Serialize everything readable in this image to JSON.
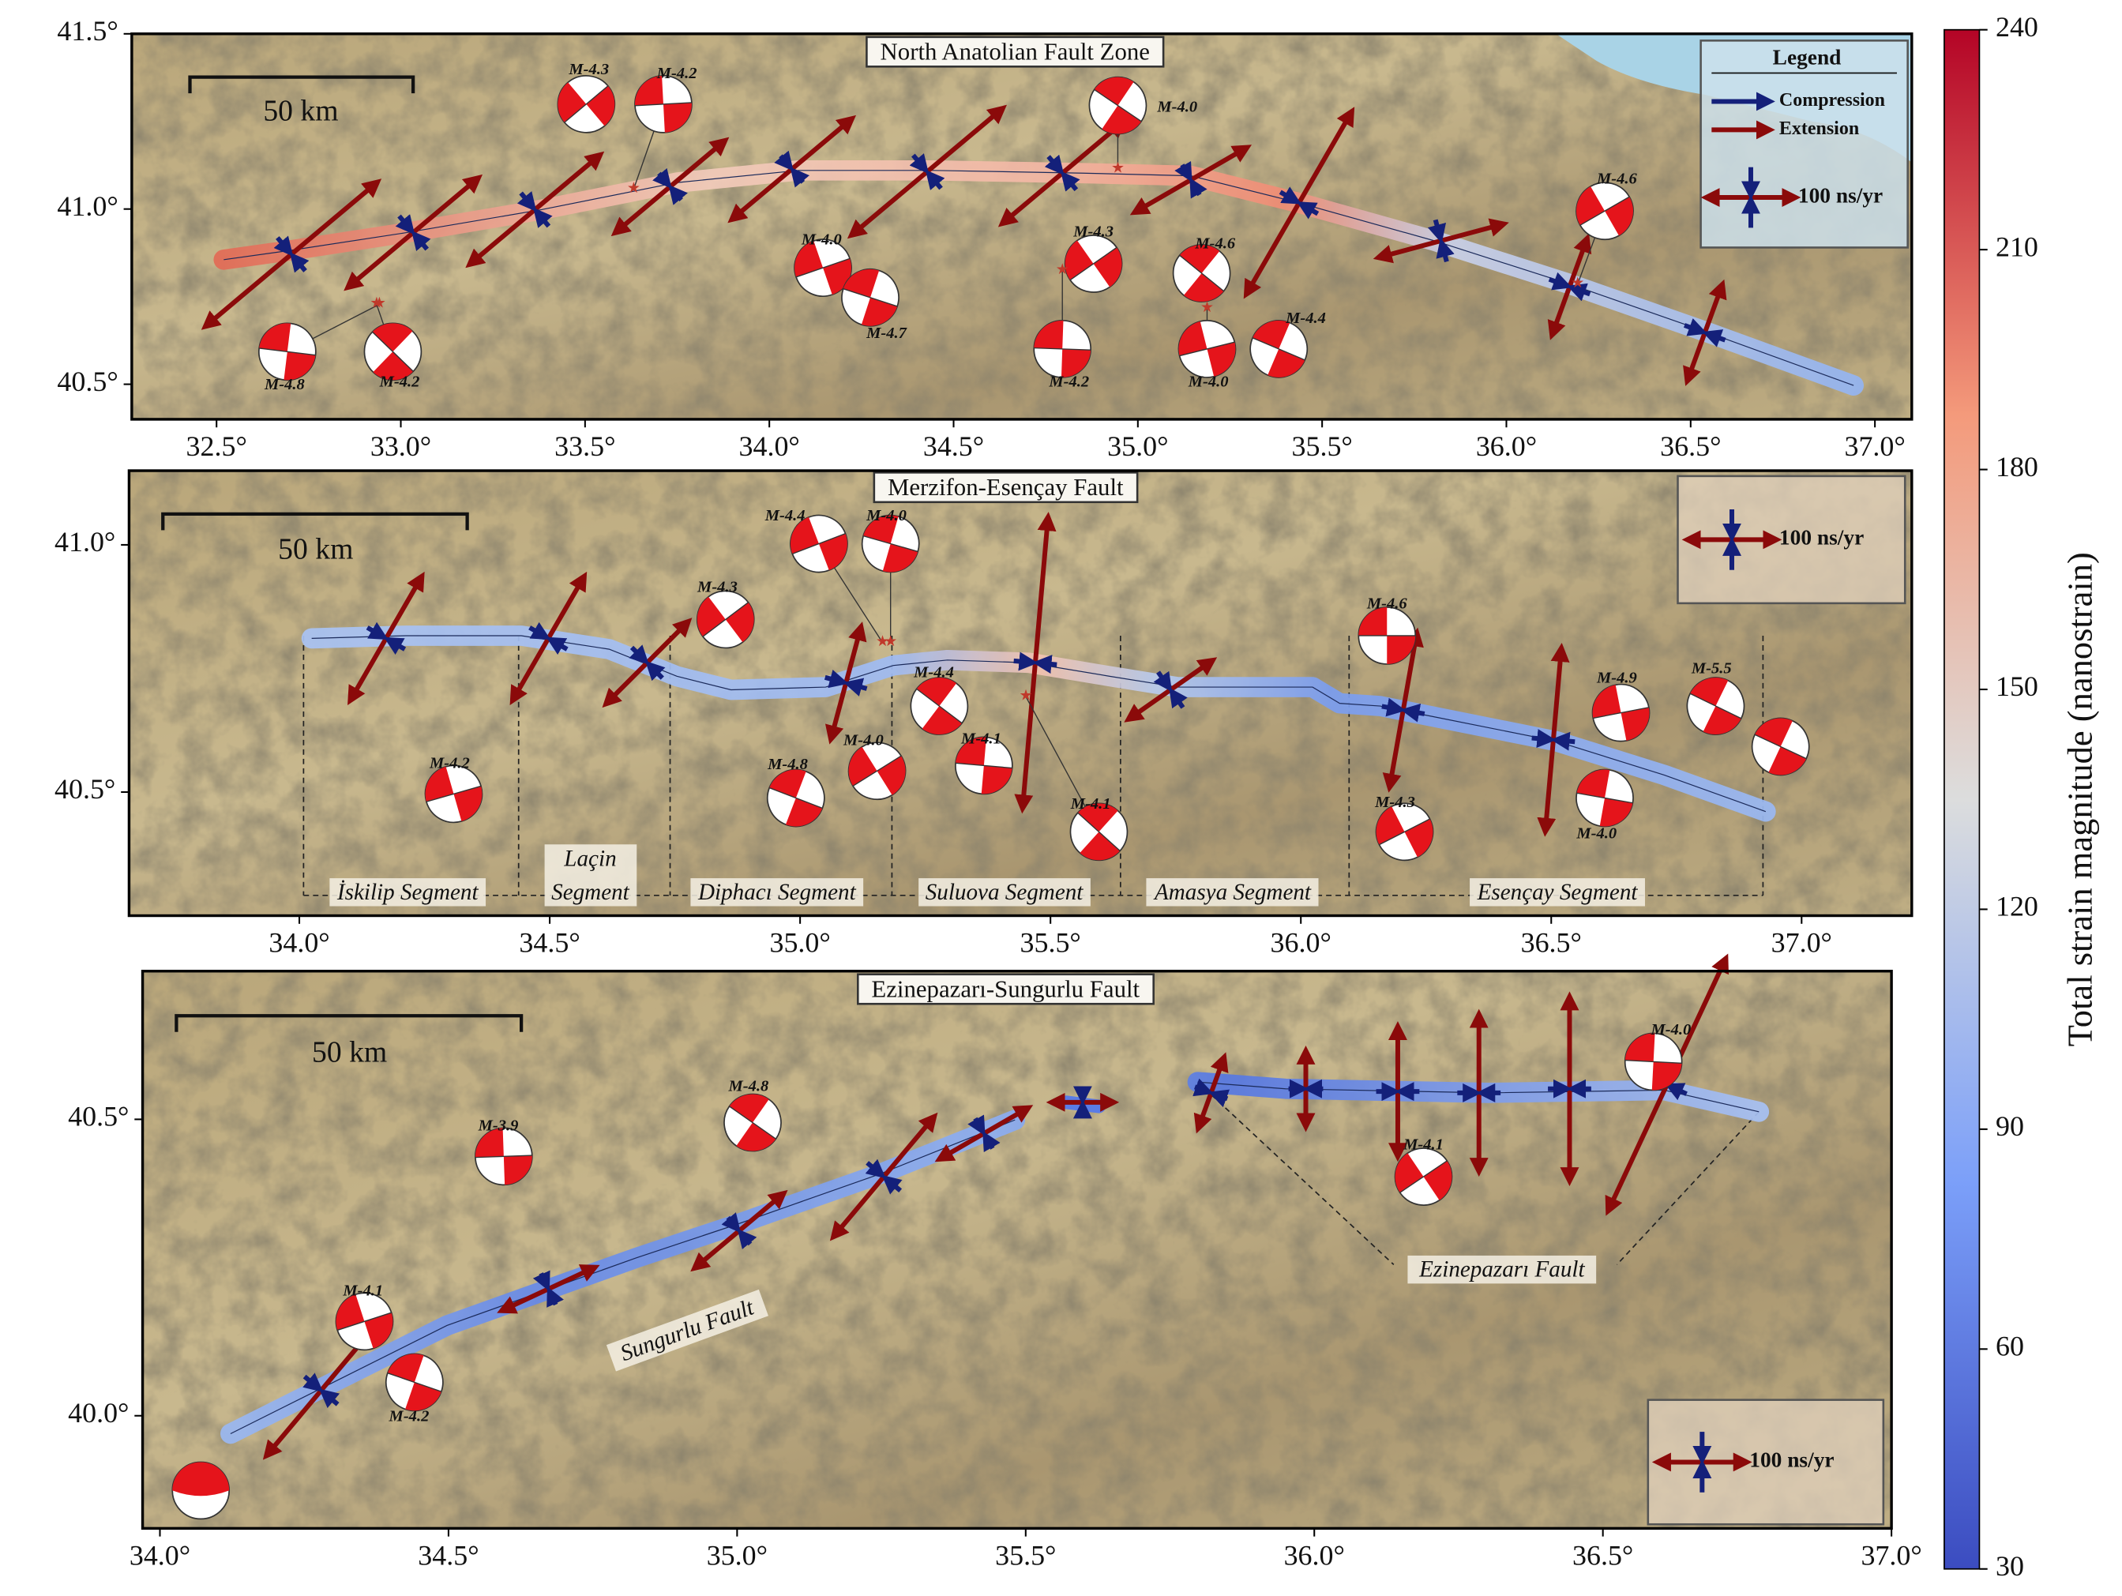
{
  "panels": [
    {
      "title": "North Anatolian Fault Zone",
      "scale_bar": "50 km",
      "xlim": [
        32.27,
        37.1
      ],
      "ylim": [
        40.4,
        41.5
      ],
      "xticks": [
        {
          "value": 32.5,
          "label": "32.5°"
        },
        {
          "value": 33.0,
          "label": "33.0°"
        },
        {
          "value": 33.5,
          "label": "33.5°"
        },
        {
          "value": 34.0,
          "label": "34.0°"
        },
        {
          "value": 34.5,
          "label": "34.5°"
        },
        {
          "value": 35.0,
          "label": "35.0°"
        },
        {
          "value": 35.5,
          "label": "35.5°"
        },
        {
          "value": 36.0,
          "label": "36.0°"
        },
        {
          "value": 36.5,
          "label": "36.5°"
        },
        {
          "value": 37.0,
          "label": "37.0°"
        }
      ],
      "yticks": [
        {
          "value": 40.5,
          "label": "40.5°"
        },
        {
          "value": 41.0,
          "label": "41.0°"
        },
        {
          "value": 41.5,
          "label": "41.5°"
        }
      ],
      "legend": {
        "title": "Legend",
        "compression": "Compression",
        "extension": "Extension",
        "scale": "100 ns/yr"
      },
      "events": [
        "M-4.3",
        "M-4.2",
        "M-4.0",
        "M-4.0",
        "M-4.7",
        "M-4.3",
        "M-4.2",
        "M-4.6",
        "M-4.0",
        "M-4.4",
        "M-4.6",
        "M-4.8",
        "M-4.2"
      ],
      "labels": []
    },
    {
      "title": "Merzifon-Esençay Fault",
      "scale_bar": "50 km",
      "xlim": [
        33.66,
        37.22
      ],
      "ylim": [
        40.25,
        41.15
      ],
      "xticks": [
        {
          "value": 34.0,
          "label": "34.0°"
        },
        {
          "value": 34.5,
          "label": "34.5°"
        },
        {
          "value": 35.0,
          "label": "35.0°"
        },
        {
          "value": 35.5,
          "label": "35.5°"
        },
        {
          "value": 36.0,
          "label": "36.0°"
        },
        {
          "value": 36.5,
          "label": "36.5°"
        },
        {
          "value": 37.0,
          "label": "37.0°"
        }
      ],
      "yticks": [
        {
          "value": 40.5,
          "label": "40.5°"
        },
        {
          "value": 41.0,
          "label": "41.0°"
        }
      ],
      "legend": {
        "scale": "100 ns/yr"
      },
      "events": [
        "M-4.4",
        "M-4.0",
        "M-4.3",
        "M-4.6",
        "M-4.4",
        "M-4.2",
        "M-4.8",
        "M-4.0",
        "M-4.1",
        "M-4.1",
        "M-4.9",
        "M-5.5",
        "M-4.3",
        "M-4.0"
      ],
      "labels": [
        "İskilip Segment",
        "Laçin Segment",
        "Diphacı Segment",
        "Suluova Segment",
        "Amasya Segment",
        "Esençay Segment"
      ]
    },
    {
      "title": "Ezinepazarı-Sungurlu Fault",
      "scale_bar": "50 km",
      "xlim": [
        33.97,
        37.0
      ],
      "ylim": [
        39.81,
        40.75
      ],
      "xticks": [
        {
          "value": 34.0,
          "label": "34.0°"
        },
        {
          "value": 34.5,
          "label": "34.5°"
        },
        {
          "value": 35.0,
          "label": "35.0°"
        },
        {
          "value": 35.5,
          "label": "35.5°"
        },
        {
          "value": 36.0,
          "label": "36.0°"
        },
        {
          "value": 36.5,
          "label": "36.5°"
        },
        {
          "value": 37.0,
          "label": "37.0°"
        }
      ],
      "yticks": [
        {
          "value": 40.0,
          "label": "40.0°"
        },
        {
          "value": 40.5,
          "label": "40.5°"
        }
      ],
      "legend": {
        "scale": "100 ns/yr"
      },
      "events": [
        "M-3.9",
        "M-4.8",
        "M-4.1",
        "M-4.2",
        "M-4.1",
        "M-4.0"
      ],
      "labels": [
        "Sungurlu Fault",
        "Ezinepazarı Fault"
      ]
    }
  ],
  "colorbar": {
    "label": "Total strain magnitude (nanostrain)",
    "lim": [
      30,
      240
    ],
    "ticks": [
      30,
      60,
      90,
      120,
      150,
      180,
      210,
      240
    ]
  }
}
